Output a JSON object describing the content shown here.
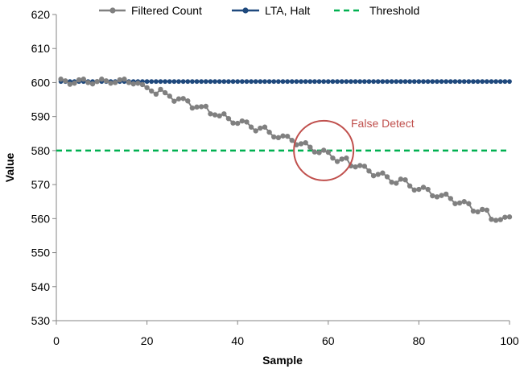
{
  "chart_data": {
    "type": "line",
    "title": "",
    "xlabel": "Sample",
    "ylabel": "Value",
    "xlim": [
      0,
      100
    ],
    "ylim": [
      530,
      620
    ],
    "x_ticks": [
      0,
      20,
      40,
      60,
      80,
      100
    ],
    "y_ticks": [
      530,
      540,
      550,
      560,
      570,
      580,
      590,
      600,
      610,
      620
    ],
    "x_tick_labels": [
      "0",
      "20",
      "40",
      "60",
      "80",
      "100"
    ],
    "y_tick_labels": [
      "530",
      "540",
      "550",
      "560",
      "570",
      "580",
      "590",
      "600",
      "610",
      "620"
    ],
    "legend_position": "top",
    "series": [
      {
        "name": "Filtered Count",
        "color": "#808080",
        "style": "line-markers",
        "x": [
          1,
          2,
          3,
          4,
          5,
          6,
          7,
          8,
          9,
          10,
          11,
          12,
          13,
          14,
          15,
          16,
          17,
          18,
          19,
          20,
          21,
          22,
          23,
          24,
          25,
          26,
          27,
          28,
          29,
          30,
          31,
          32,
          33,
          34,
          35,
          36,
          37,
          38,
          39,
          40,
          41,
          42,
          43,
          44,
          45,
          46,
          47,
          48,
          49,
          50,
          51,
          52,
          53,
          54,
          55,
          56,
          57,
          58,
          59,
          60,
          61,
          62,
          63,
          64,
          65,
          66,
          67,
          68,
          69,
          70,
          71,
          72,
          73,
          74,
          75,
          76,
          77,
          78,
          79,
          80,
          81,
          82,
          83,
          84,
          85,
          86,
          87,
          88,
          89,
          90,
          91,
          92,
          93,
          94,
          95,
          96,
          97,
          98,
          99,
          100
        ],
        "values": [
          601.0,
          600.5,
          599.5,
          599.8,
          600.8,
          601.0,
          600.0,
          599.6,
          600.3,
          601.0,
          600.5,
          599.8,
          600.0,
          600.8,
          601.0,
          600.0,
          599.6,
          599.8,
          599.4,
          598.5,
          597.5,
          596.6,
          598.0,
          597.0,
          596.0,
          594.5,
          595.2,
          595.3,
          594.6,
          592.5,
          592.8,
          592.9,
          593.0,
          590.8,
          590.5,
          590.2,
          590.8,
          589.4,
          588.1,
          588.0,
          588.7,
          588.4,
          586.9,
          585.8,
          586.6,
          586.9,
          585.4,
          584.0,
          583.8,
          584.3,
          584.2,
          583.0,
          581.7,
          582.0,
          582.3,
          581.0,
          579.6,
          579.4,
          580.1,
          579.5,
          577.8,
          576.8,
          577.5,
          577.8,
          575.5,
          575.2,
          575.6,
          575.4,
          574.0,
          572.6,
          573.0,
          573.4,
          572.3,
          570.7,
          570.4,
          571.6,
          571.4,
          569.6,
          568.4,
          568.6,
          569.2,
          568.6,
          566.7,
          566.4,
          566.8,
          567.2,
          565.9,
          564.4,
          564.6,
          565.0,
          564.4,
          562.2,
          562.0,
          562.7,
          562.5,
          559.8,
          559.5,
          559.7,
          560.4,
          560.5
        ]
      },
      {
        "name": "LTA, Halt",
        "color": "#1f497d",
        "style": "line-markers",
        "x_start": 1,
        "x_end": 100,
        "value": 600.3
      },
      {
        "name": "Threshold",
        "color": "#00b050",
        "style": "dashed",
        "x": [
          0,
          100
        ],
        "values": [
          580,
          580
        ]
      }
    ],
    "annotations": [
      {
        "text": "False Detect",
        "color": "#c0504d",
        "x": 59,
        "y": 580,
        "shape": "circle"
      }
    ]
  }
}
